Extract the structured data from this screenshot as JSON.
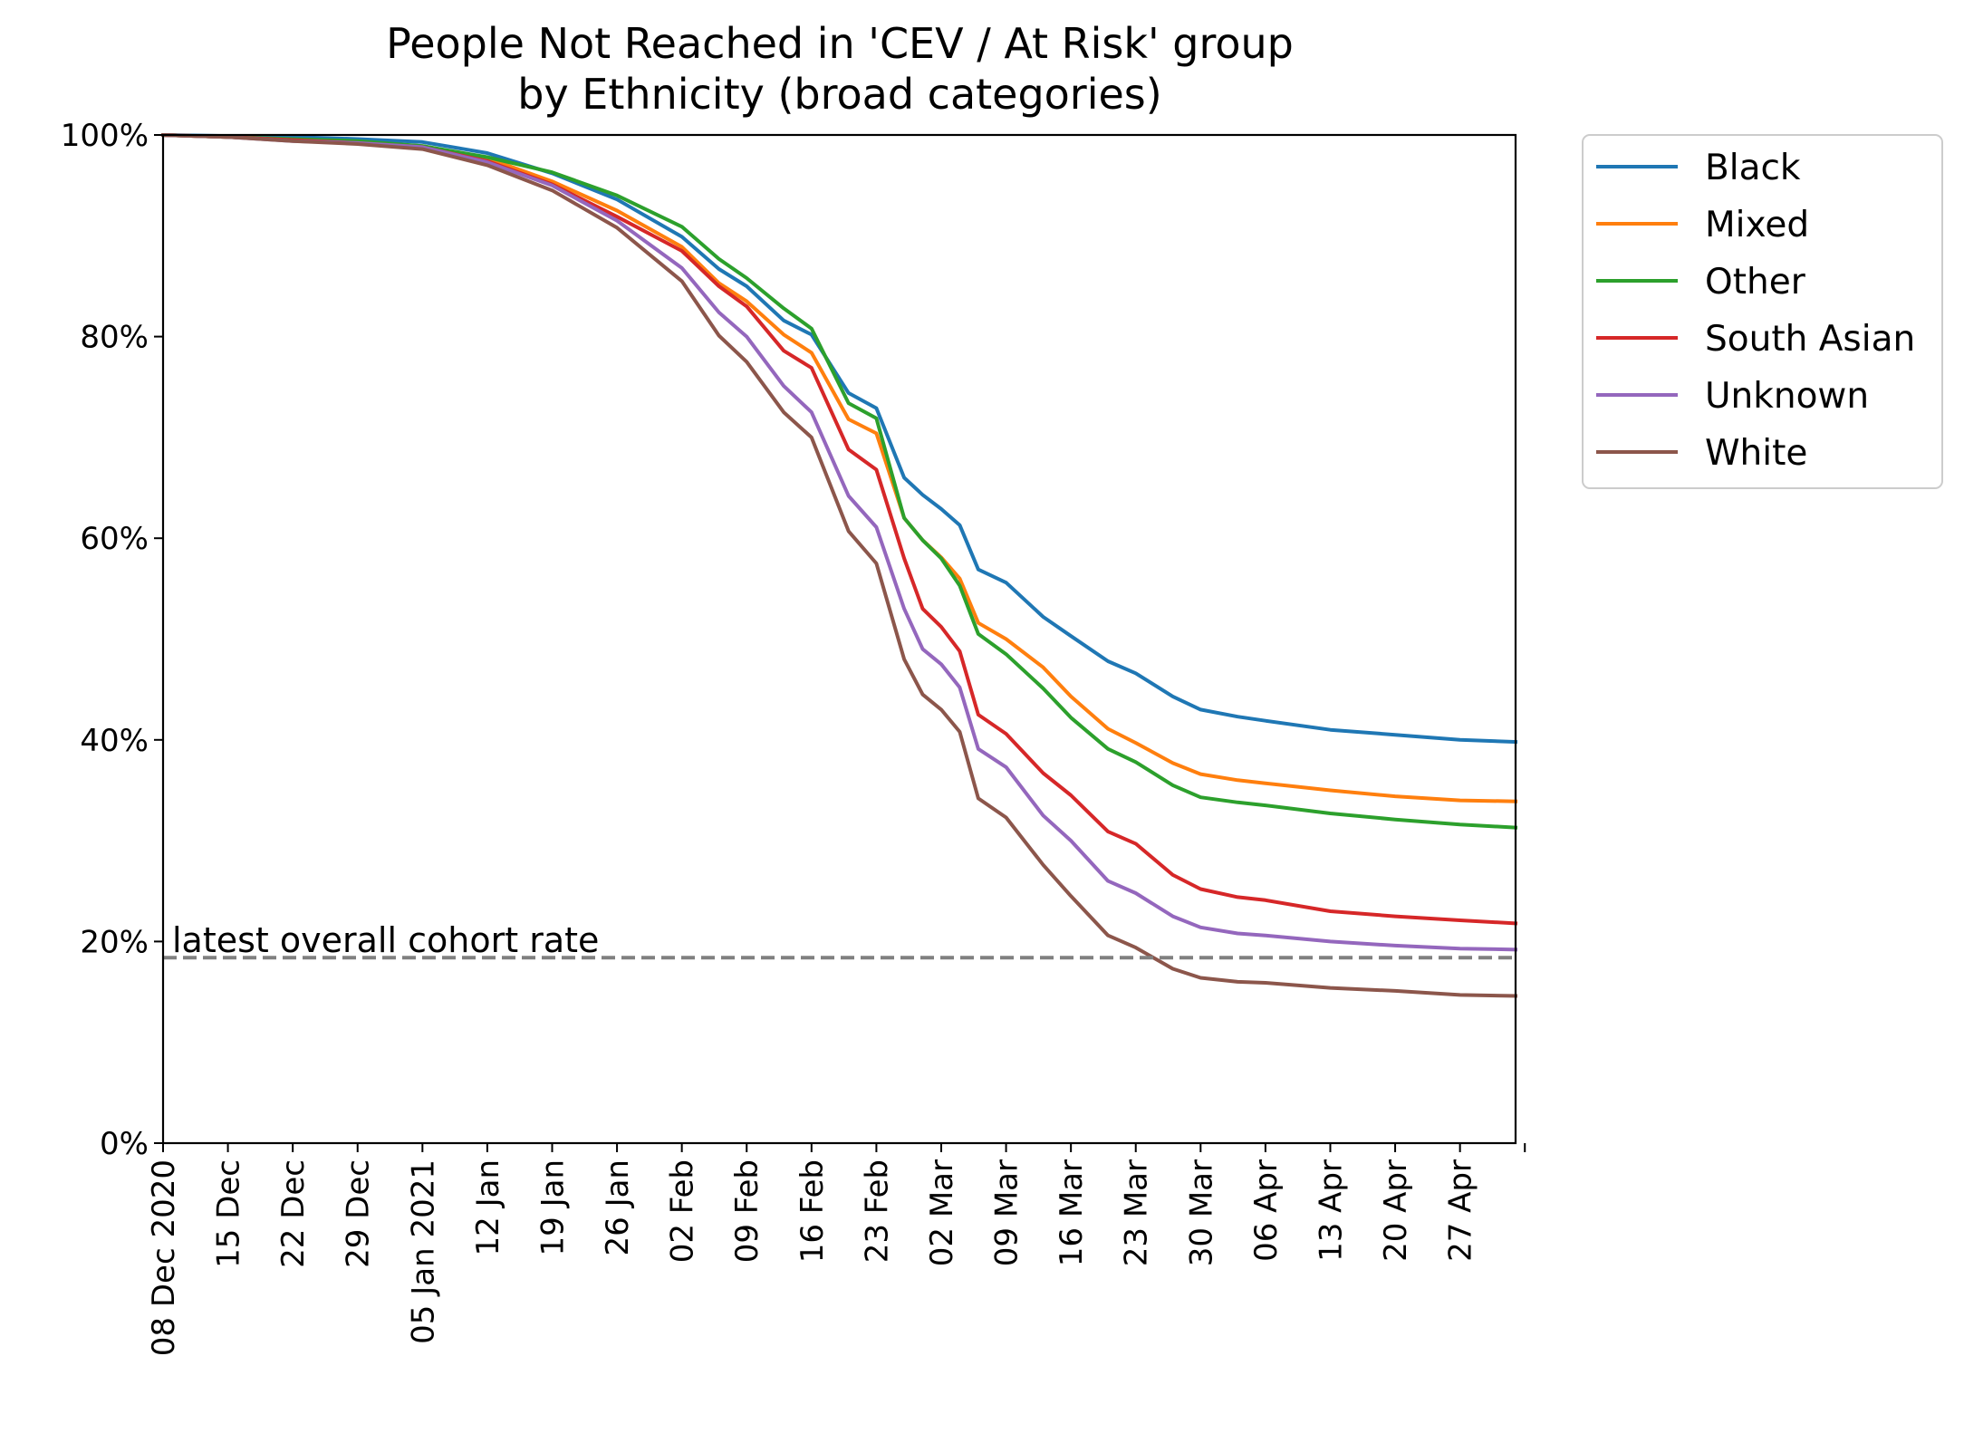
{
  "chart_data": {
    "type": "line",
    "title": "People Not Reached in 'CEV / At Risk' group",
    "subtitle": "by Ethnicity (broad categories)",
    "xlabel": "",
    "ylabel": "",
    "ylim": [
      0,
      100
    ],
    "y_ticks": [
      0,
      20,
      40,
      60,
      80,
      100
    ],
    "y_tick_labels": [
      "0%",
      "20%",
      "40%",
      "60%",
      "80%",
      "100%"
    ],
    "x_range": [
      "2020-12-08",
      "2021-05-03"
    ],
    "x_ticks": [
      "2020-12-08",
      "2020-12-15",
      "2020-12-22",
      "2020-12-29",
      "2021-01-05",
      "2021-01-12",
      "2021-01-19",
      "2021-01-26",
      "2021-02-02",
      "2021-02-09",
      "2021-02-16",
      "2021-02-23",
      "2021-03-02",
      "2021-03-09",
      "2021-03-16",
      "2021-03-23",
      "2021-03-30",
      "2021-04-06",
      "2021-04-13",
      "2021-04-20",
      "2021-04-27"
    ],
    "x_tick_labels": [
      "08 Dec 2020",
      "15 Dec",
      "22 Dec",
      "29 Dec",
      "05 Jan 2021",
      "12 Jan",
      "19 Jan",
      "26 Jan",
      "02 Feb",
      "09 Feb",
      "16 Feb",
      "23 Feb",
      "02 Mar",
      "09 Mar",
      "16 Mar",
      "23 Mar",
      "30 Mar",
      "06 Apr",
      "13 Apr",
      "20 Apr",
      "27 Apr"
    ],
    "grid": false,
    "legend_position": "outside-top-right",
    "reference_line": {
      "value": 18.4,
      "label": "latest overall cohort rate",
      "color": "#808080",
      "style": "dashed"
    },
    "series": [
      {
        "name": "Black",
        "color": "#1f77b4",
        "points": [
          [
            "2020-12-08",
            100
          ],
          [
            "2020-12-15",
            99.9
          ],
          [
            "2020-12-22",
            99.8
          ],
          [
            "2020-12-29",
            99.6
          ],
          [
            "2021-01-05",
            99.3
          ],
          [
            "2021-01-12",
            98.2
          ],
          [
            "2021-01-19",
            96.2
          ],
          [
            "2021-01-26",
            93.6
          ],
          [
            "2021-02-02",
            89.9
          ],
          [
            "2021-02-06",
            86.7
          ],
          [
            "2021-02-09",
            85
          ],
          [
            "2021-02-13",
            81.6
          ],
          [
            "2021-02-16",
            80.2
          ],
          [
            "2021-02-20",
            74.4
          ],
          [
            "2021-02-23",
            72.9
          ],
          [
            "2021-02-26",
            66
          ],
          [
            "2021-02-28",
            64.3
          ],
          [
            "2021-03-02",
            62.9
          ],
          [
            "2021-03-04",
            61.3
          ],
          [
            "2021-03-06",
            56.9
          ],
          [
            "2021-03-09",
            55.6
          ],
          [
            "2021-03-13",
            52.2
          ],
          [
            "2021-03-16",
            50.3
          ],
          [
            "2021-03-20",
            47.8
          ],
          [
            "2021-03-23",
            46.6
          ],
          [
            "2021-03-27",
            44.3
          ],
          [
            "2021-03-30",
            43
          ],
          [
            "2021-04-03",
            42.3
          ],
          [
            "2021-04-06",
            41.9
          ],
          [
            "2021-04-13",
            41
          ],
          [
            "2021-04-20",
            40.5
          ],
          [
            "2021-04-27",
            40
          ],
          [
            "2021-05-03",
            39.8
          ]
        ]
      },
      {
        "name": "Mixed",
        "color": "#ff7f0e",
        "points": [
          [
            "2020-12-08",
            100
          ],
          [
            "2020-12-15",
            99.8
          ],
          [
            "2020-12-22",
            99.5
          ],
          [
            "2020-12-29",
            99.3
          ],
          [
            "2021-01-05",
            98.9
          ],
          [
            "2021-01-12",
            97.7
          ],
          [
            "2021-01-19",
            95.4
          ],
          [
            "2021-01-26",
            92.5
          ],
          [
            "2021-02-02",
            88.9
          ],
          [
            "2021-02-06",
            85.3
          ],
          [
            "2021-02-09",
            83.5
          ],
          [
            "2021-02-13",
            80.2
          ],
          [
            "2021-02-16",
            78.4
          ],
          [
            "2021-02-20",
            71.8
          ],
          [
            "2021-02-23",
            70.4
          ],
          [
            "2021-02-26",
            62
          ],
          [
            "2021-02-28",
            59.8
          ],
          [
            "2021-03-02",
            58.1
          ],
          [
            "2021-03-04",
            56
          ],
          [
            "2021-03-06",
            51.6
          ],
          [
            "2021-03-09",
            50
          ],
          [
            "2021-03-13",
            47.2
          ],
          [
            "2021-03-16",
            44.3
          ],
          [
            "2021-03-20",
            41.1
          ],
          [
            "2021-03-23",
            39.7
          ],
          [
            "2021-03-27",
            37.7
          ],
          [
            "2021-03-30",
            36.6
          ],
          [
            "2021-04-03",
            36
          ],
          [
            "2021-04-06",
            35.7
          ],
          [
            "2021-04-13",
            35
          ],
          [
            "2021-04-20",
            34.4
          ],
          [
            "2021-04-27",
            34
          ],
          [
            "2021-05-03",
            33.9
          ]
        ]
      },
      {
        "name": "Other",
        "color": "#2ca02c",
        "points": [
          [
            "2020-12-08",
            100
          ],
          [
            "2020-12-15",
            99.8
          ],
          [
            "2020-12-22",
            99.6
          ],
          [
            "2020-12-29",
            99.4
          ],
          [
            "2021-01-05",
            98.9
          ],
          [
            "2021-01-12",
            97.8
          ],
          [
            "2021-01-19",
            96.3
          ],
          [
            "2021-01-26",
            94
          ],
          [
            "2021-02-02",
            90.9
          ],
          [
            "2021-02-06",
            87.7
          ],
          [
            "2021-02-09",
            85.8
          ],
          [
            "2021-02-13",
            82.8
          ],
          [
            "2021-02-16",
            80.8
          ],
          [
            "2021-02-20",
            73.4
          ],
          [
            "2021-02-23",
            71.9
          ],
          [
            "2021-02-26",
            62
          ],
          [
            "2021-02-28",
            59.8
          ],
          [
            "2021-03-02",
            58
          ],
          [
            "2021-03-04",
            55.3
          ],
          [
            "2021-03-06",
            50.5
          ],
          [
            "2021-03-09",
            48.5
          ],
          [
            "2021-03-13",
            45.1
          ],
          [
            "2021-03-16",
            42.2
          ],
          [
            "2021-03-20",
            39.1
          ],
          [
            "2021-03-23",
            37.8
          ],
          [
            "2021-03-27",
            35.5
          ],
          [
            "2021-03-30",
            34.3
          ],
          [
            "2021-04-03",
            33.8
          ],
          [
            "2021-04-06",
            33.5
          ],
          [
            "2021-04-13",
            32.7
          ],
          [
            "2021-04-20",
            32.1
          ],
          [
            "2021-04-27",
            31.6
          ],
          [
            "2021-05-03",
            31.3
          ]
        ]
      },
      {
        "name": "South Asian",
        "color": "#d62728",
        "points": [
          [
            "2020-12-08",
            100
          ],
          [
            "2020-12-15",
            99.8
          ],
          [
            "2020-12-22",
            99.5
          ],
          [
            "2020-12-29",
            99.2
          ],
          [
            "2021-01-05",
            98.8
          ],
          [
            "2021-01-12",
            97.4
          ],
          [
            "2021-01-19",
            95.1
          ],
          [
            "2021-01-26",
            91.9
          ],
          [
            "2021-02-02",
            88.5
          ],
          [
            "2021-02-06",
            85
          ],
          [
            "2021-02-09",
            83
          ],
          [
            "2021-02-13",
            78.6
          ],
          [
            "2021-02-16",
            76.9
          ],
          [
            "2021-02-20",
            68.8
          ],
          [
            "2021-02-23",
            66.8
          ],
          [
            "2021-02-26",
            58
          ],
          [
            "2021-02-28",
            53
          ],
          [
            "2021-03-02",
            51.2
          ],
          [
            "2021-03-04",
            48.8
          ],
          [
            "2021-03-06",
            42.5
          ],
          [
            "2021-03-09",
            40.6
          ],
          [
            "2021-03-13",
            36.7
          ],
          [
            "2021-03-16",
            34.5
          ],
          [
            "2021-03-20",
            30.9
          ],
          [
            "2021-03-23",
            29.7
          ],
          [
            "2021-03-27",
            26.6
          ],
          [
            "2021-03-30",
            25.2
          ],
          [
            "2021-04-03",
            24.4
          ],
          [
            "2021-04-06",
            24.1
          ],
          [
            "2021-04-13",
            23
          ],
          [
            "2021-04-20",
            22.5
          ],
          [
            "2021-04-27",
            22.1
          ],
          [
            "2021-05-03",
            21.8
          ]
        ]
      },
      {
        "name": "Unknown",
        "color": "#9467bd",
        "points": [
          [
            "2020-12-08",
            100
          ],
          [
            "2020-12-15",
            99.8
          ],
          [
            "2020-12-22",
            99.4
          ],
          [
            "2020-12-29",
            99.2
          ],
          [
            "2021-01-05",
            98.8
          ],
          [
            "2021-01-12",
            97.3
          ],
          [
            "2021-01-19",
            95
          ],
          [
            "2021-01-26",
            91.5
          ],
          [
            "2021-02-02",
            86.8
          ],
          [
            "2021-02-06",
            82.4
          ],
          [
            "2021-02-09",
            80
          ],
          [
            "2021-02-13",
            75.1
          ],
          [
            "2021-02-16",
            72.5
          ],
          [
            "2021-02-20",
            64.2
          ],
          [
            "2021-02-23",
            61.1
          ],
          [
            "2021-02-26",
            53
          ],
          [
            "2021-02-28",
            49
          ],
          [
            "2021-03-02",
            47.5
          ],
          [
            "2021-03-04",
            45.2
          ],
          [
            "2021-03-06",
            39.1
          ],
          [
            "2021-03-09",
            37.3
          ],
          [
            "2021-03-13",
            32.5
          ],
          [
            "2021-03-16",
            30
          ],
          [
            "2021-03-20",
            26
          ],
          [
            "2021-03-23",
            24.8
          ],
          [
            "2021-03-27",
            22.5
          ],
          [
            "2021-03-30",
            21.4
          ],
          [
            "2021-04-03",
            20.8
          ],
          [
            "2021-04-06",
            20.6
          ],
          [
            "2021-04-13",
            20
          ],
          [
            "2021-04-20",
            19.6
          ],
          [
            "2021-04-27",
            19.3
          ],
          [
            "2021-05-03",
            19.2
          ]
        ]
      },
      {
        "name": "White",
        "color": "#8c564b",
        "points": [
          [
            "2020-12-08",
            100
          ],
          [
            "2020-12-15",
            99.8
          ],
          [
            "2020-12-22",
            99.4
          ],
          [
            "2020-12-29",
            99.1
          ],
          [
            "2021-01-05",
            98.6
          ],
          [
            "2021-01-12",
            97
          ],
          [
            "2021-01-19",
            94.5
          ],
          [
            "2021-01-26",
            90.8
          ],
          [
            "2021-02-02",
            85.5
          ],
          [
            "2021-02-06",
            80.1
          ],
          [
            "2021-02-09",
            77.5
          ],
          [
            "2021-02-13",
            72.5
          ],
          [
            "2021-02-16",
            70
          ],
          [
            "2021-02-20",
            60.7
          ],
          [
            "2021-02-23",
            57.5
          ],
          [
            "2021-02-26",
            48
          ],
          [
            "2021-02-28",
            44.5
          ],
          [
            "2021-03-02",
            43
          ],
          [
            "2021-03-04",
            40.8
          ],
          [
            "2021-03-06",
            34.2
          ],
          [
            "2021-03-09",
            32.3
          ],
          [
            "2021-03-13",
            27.6
          ],
          [
            "2021-03-16",
            24.5
          ],
          [
            "2021-03-20",
            20.6
          ],
          [
            "2021-03-23",
            19.4
          ],
          [
            "2021-03-27",
            17.3
          ],
          [
            "2021-03-30",
            16.4
          ],
          [
            "2021-04-03",
            16
          ],
          [
            "2021-04-06",
            15.9
          ],
          [
            "2021-04-13",
            15.4
          ],
          [
            "2021-04-20",
            15.1
          ],
          [
            "2021-04-27",
            14.7
          ],
          [
            "2021-05-03",
            14.6
          ]
        ]
      }
    ]
  }
}
